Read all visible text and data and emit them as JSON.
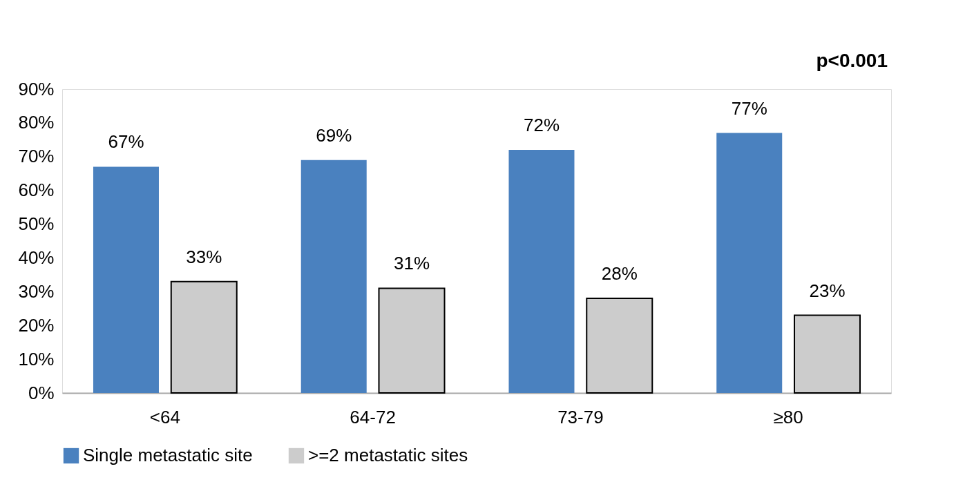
{
  "chart_data": {
    "type": "bar",
    "categories": [
      "<64",
      "64-72",
      "73-79",
      "≥80"
    ],
    "series": [
      {
        "name": "Single metastatic site",
        "color": "#4a81bf",
        "values": [
          67,
          69,
          72,
          77
        ],
        "value_labels": [
          "67%",
          "69%",
          "72%",
          "77%"
        ]
      },
      {
        "name": ">=2 metastatic sites",
        "color": "#cccccc",
        "values": [
          33,
          31,
          28,
          23
        ],
        "value_labels": [
          "33%",
          "31%",
          "28%",
          "23%"
        ]
      }
    ],
    "ylim": [
      0,
      90
    ],
    "yticks": [
      {
        "value": 0,
        "label": "0%"
      },
      {
        "value": 10,
        "label": "10%"
      },
      {
        "value": 20,
        "label": "20%"
      },
      {
        "value": 30,
        "label": "30%"
      },
      {
        "value": 40,
        "label": "40%"
      },
      {
        "value": 50,
        "label": "50%"
      },
      {
        "value": 60,
        "label": "60%"
      },
      {
        "value": 70,
        "label": "70%"
      },
      {
        "value": 80,
        "label": "80%"
      },
      {
        "value": 90,
        "label": "90%"
      }
    ],
    "annotations": [
      "p<0.001"
    ],
    "grid": false,
    "legend": "bottom"
  }
}
